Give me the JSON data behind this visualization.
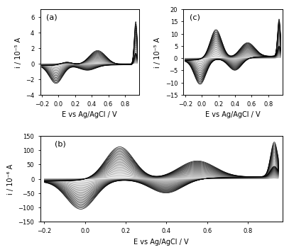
{
  "panel_a": {
    "label": "(a)",
    "ylabel": "i / 10⁻⁵ A",
    "xlabel": "E vs Ag/AgCl / V",
    "xlim": [
      -0.22,
      0.97
    ],
    "ylim": [
      -4.0,
      7.0
    ],
    "yticks": [
      -4,
      -2,
      0,
      2,
      4,
      6
    ],
    "xticks": [
      -0.2,
      0.0,
      0.2,
      0.4,
      0.6,
      0.8
    ],
    "n_cycles": 20
  },
  "panel_b": {
    "label": "(b)",
    "ylabel": "i / 10⁻⁶ A",
    "xlabel": "E vs Ag/AgCl / V",
    "xlim": [
      -0.22,
      0.97
    ],
    "ylim": [
      -150,
      150
    ],
    "yticks": [
      -150,
      -100,
      -50,
      0,
      50,
      100,
      150
    ],
    "xticks": [
      -0.2,
      0.0,
      0.2,
      0.4,
      0.6,
      0.8
    ],
    "n_cycles": 25
  },
  "panel_c": {
    "label": "(c)",
    "ylabel": "i / 10⁻⁵ A",
    "xlabel": "E vs Ag/AgCl / V",
    "xlim": [
      -0.22,
      0.97
    ],
    "ylim": [
      -15,
      20
    ],
    "yticks": [
      -15,
      -10,
      -5,
      0,
      5,
      10,
      15,
      20
    ],
    "xticks": [
      -0.2,
      0.0,
      0.2,
      0.4,
      0.6,
      0.8
    ],
    "n_cycles": 25
  },
  "background_color": "#ffffff",
  "tick_fontsize": 6,
  "label_fontsize": 7
}
